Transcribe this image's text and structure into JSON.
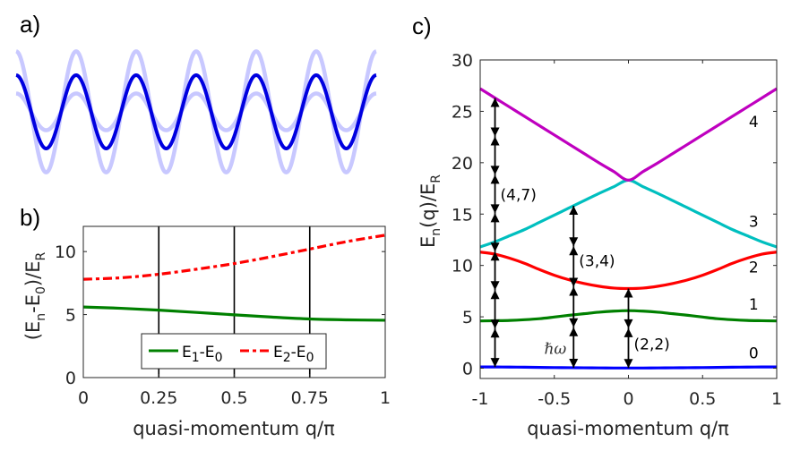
{
  "panels": {
    "a": {
      "letter": "a)"
    },
    "b": {
      "letter": "b)"
    },
    "c": {
      "letter": "c)"
    }
  },
  "chart_data": [
    {
      "id": "a",
      "type": "line",
      "title": "",
      "description_kind": "optical lattice potential profiles",
      "periods": 6,
      "series": [
        {
          "name": "deep-lattice",
          "relative_amplitude": 1.65,
          "color": "#c8c8ff"
        },
        {
          "name": "shallow-lattice",
          "relative_amplitude": 0.5,
          "color": "#c8c8ff"
        },
        {
          "name": "mean-lattice",
          "relative_amplitude": 1.0,
          "color": "#0000e0"
        }
      ]
    },
    {
      "id": "b",
      "type": "line",
      "xlabel": "quasi-momentum q/π",
      "ylabel": {
        "main": "(E",
        "sub1": "n",
        "mid": "-E",
        "sub2": "0",
        "end": ")/E",
        "sub3": "R"
      },
      "xlim": [
        0,
        1
      ],
      "ylim": [
        0,
        12
      ],
      "xticks": [
        "0",
        "0.25",
        "0.5",
        "0.75",
        "1"
      ],
      "xtick_values": [
        0,
        0.25,
        0.5,
        0.75,
        1
      ],
      "yticks": [
        "0",
        "5",
        "10"
      ],
      "ytick_values": [
        0,
        5,
        10
      ],
      "vlines": [
        0.25,
        0.5,
        0.75
      ],
      "x": [
        0,
        0.125,
        0.25,
        0.375,
        0.5,
        0.625,
        0.75,
        0.875,
        1
      ],
      "series": [
        {
          "name": "E1-E0",
          "label_main": "E",
          "label_sub1": "1",
          "label_mid": "-E",
          "label_sub2": "0",
          "style": "solid",
          "color": "#008000",
          "values": [
            5.6,
            5.5,
            5.35,
            5.17,
            4.98,
            4.8,
            4.65,
            4.58,
            4.55
          ]
        },
        {
          "name": "E2-E0",
          "label_main": "E",
          "label_sub1": "2",
          "label_mid": "-E",
          "label_sub2": "0",
          "style": "dashdot",
          "color": "#ff0000",
          "values": [
            7.8,
            7.92,
            8.2,
            8.6,
            9.05,
            9.6,
            10.2,
            10.8,
            11.3
          ]
        }
      ],
      "legend": "bottom-center"
    },
    {
      "id": "c",
      "type": "line",
      "xlabel": "quasi-momentum q/π",
      "ylabel": {
        "main": "E",
        "sub1": "n",
        "mid": "(q)/E",
        "sub2": "R"
      },
      "xlim": [
        -1,
        1
      ],
      "ylim": [
        -1,
        30
      ],
      "xticks": [
        "-1",
        "-0.5",
        "0",
        "0.5",
        "1"
      ],
      "xtick_values": [
        -1,
        -0.5,
        0,
        0.5,
        1
      ],
      "yticks": [
        "0",
        "5",
        "10",
        "15",
        "20",
        "25",
        "30"
      ],
      "ytick_values": [
        0,
        5,
        10,
        15,
        20,
        25,
        30
      ],
      "x": [
        -1,
        -0.9,
        -0.8,
        -0.7,
        -0.6,
        -0.5,
        -0.4,
        -0.3,
        -0.2,
        -0.1,
        0,
        0.1,
        0.2,
        0.3,
        0.4,
        0.5,
        0.6,
        0.7,
        0.8,
        0.9,
        1
      ],
      "series": [
        {
          "name": "band-0",
          "label": "0",
          "color": "#0000ff",
          "values": [
            0.12,
            0.12,
            0.11,
            0.1,
            0.08,
            0.06,
            0.05,
            0.04,
            0.03,
            0.02,
            0.02,
            0.02,
            0.03,
            0.04,
            0.05,
            0.06,
            0.08,
            0.1,
            0.11,
            0.12,
            0.12
          ]
        },
        {
          "name": "band-1",
          "label": "1",
          "color": "#008000",
          "values": [
            4.6,
            4.62,
            4.65,
            4.72,
            4.82,
            4.98,
            5.15,
            5.3,
            5.45,
            5.55,
            5.6,
            5.55,
            5.45,
            5.3,
            5.15,
            4.98,
            4.82,
            4.72,
            4.65,
            4.62,
            4.6
          ]
        },
        {
          "name": "band-2",
          "label": "2",
          "color": "#ff0000",
          "values": [
            11.3,
            11.1,
            10.7,
            10.2,
            9.6,
            9.05,
            8.6,
            8.25,
            7.98,
            7.8,
            7.75,
            7.8,
            7.98,
            8.25,
            8.6,
            9.05,
            9.6,
            10.2,
            10.7,
            11.1,
            11.3
          ]
        },
        {
          "name": "band-3",
          "label": "3",
          "color": "#00bfbf",
          "values": [
            11.8,
            12.3,
            12.9,
            13.5,
            14.2,
            14.9,
            15.6,
            16.3,
            17.0,
            17.65,
            18.3,
            17.65,
            17.0,
            16.3,
            15.6,
            14.9,
            14.2,
            13.5,
            12.9,
            12.3,
            11.8
          ]
        },
        {
          "name": "band-4",
          "label": "4",
          "color": "#bf00bf",
          "values": [
            27.2,
            26.3,
            25.4,
            24.5,
            23.6,
            22.7,
            21.8,
            20.9,
            20.0,
            19.15,
            18.3,
            19.15,
            20.0,
            20.9,
            21.8,
            22.7,
            23.6,
            24.5,
            25.4,
            26.3,
            27.2
          ]
        }
      ],
      "band_labels_at_q": 0.8,
      "transitions": [
        {
          "q": -0.9,
          "target_band": 4,
          "photons": 7,
          "label": "(4,7)"
        },
        {
          "q": -0.37,
          "target_band": 3,
          "photons": 4,
          "label": "(3,4)"
        },
        {
          "q": 0,
          "target_band": 2,
          "photons": 2,
          "label": "(2,2)"
        }
      ],
      "photon_label": "ℏω"
    }
  ]
}
